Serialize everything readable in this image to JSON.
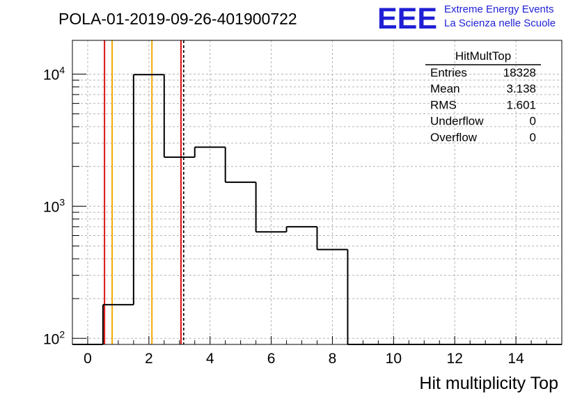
{
  "header": {
    "plot_title": "POLA-01-2019-09-26-401900722",
    "logo_text": "EEE",
    "logo_line1": "Extreme Energy Events",
    "logo_line2": "La Scienza nelle Scuole"
  },
  "stats_box": {
    "title": "HitMultTop",
    "rows": [
      {
        "label": "Entries",
        "value": "18328"
      },
      {
        "label": "Mean",
        "value": "3.138"
      },
      {
        "label": "RMS",
        "value": "1.601"
      },
      {
        "label": "Underflow",
        "value": "0"
      },
      {
        "label": "Overflow",
        "value": "0"
      }
    ]
  },
  "chart_data": {
    "type": "histogram",
    "title": "POLA-01-2019-09-26-401900722",
    "xlabel": "Hit multiplicity Top",
    "ylabel": "",
    "xlim": [
      -0.5,
      15.5
    ],
    "ylim": [
      90,
      18000
    ],
    "y_scale": "log",
    "grid": true,
    "x_tick_labels": [
      "0",
      "2",
      "4",
      "6",
      "8",
      "10",
      "12",
      "14"
    ],
    "y_tick_labels": [
      {
        "base": "10",
        "exp": "2"
      },
      {
        "base": "10",
        "exp": "3"
      },
      {
        "base": "10",
        "exp": "4"
      }
    ],
    "bin_edges": [
      -0.5,
      0.5,
      1.5,
      2.5,
      3.5,
      4.5,
      5.5,
      6.5,
      7.5,
      8.5,
      9.5,
      10.5,
      11.5,
      12.5,
      13.5,
      14.5,
      15.5
    ],
    "bin_values": [
      0,
      180,
      9900,
      2350,
      2800,
      1520,
      640,
      700,
      470,
      0,
      0,
      0,
      0,
      0,
      0,
      0
    ],
    "vertical_lines": [
      {
        "x": 0.55,
        "color": "#dd1111",
        "style": "solid"
      },
      {
        "x": 0.8,
        "color": "#f0a800",
        "style": "solid"
      },
      {
        "x": 2.1,
        "color": "#f0a800",
        "style": "solid"
      },
      {
        "x": 3.05,
        "color": "#dd1111",
        "style": "solid"
      },
      {
        "x": 3.138,
        "color": "#000000",
        "style": "dashed"
      }
    ],
    "colors": {
      "histogram": "#000000",
      "grid": "#b4b4b4",
      "logo": "#1f1fd6"
    }
  }
}
